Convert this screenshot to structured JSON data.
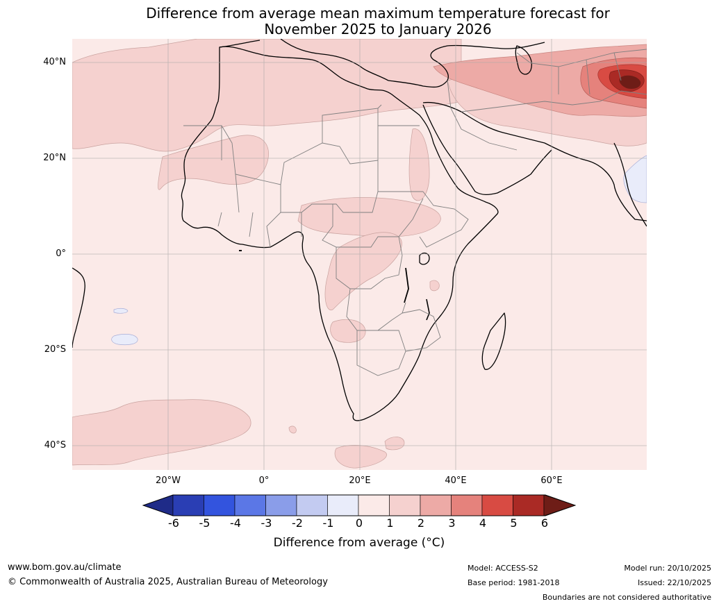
{
  "title": {
    "line1": "Difference from average mean maximum temperature forecast for",
    "line2": "November 2025 to January 2026"
  },
  "map": {
    "region": "Africa and surrounding oceans",
    "lat_labels": [
      "40°N",
      "20°N",
      "0°",
      "20°S",
      "40°S"
    ],
    "lon_labels": [
      "20°W",
      "0°",
      "20°E",
      "40°E",
      "60°E"
    ]
  },
  "colorbar": {
    "label": "Difference from average (°C)",
    "ticks": [
      "-6",
      "-5",
      "-4",
      "-3",
      "-2",
      "-1",
      "0",
      "1",
      "2",
      "3",
      "4",
      "5",
      "6"
    ],
    "colors": [
      "#1f2b88",
      "#2a3eb4",
      "#3354de",
      "#5b77e6",
      "#8a9de9",
      "#c3cbf1",
      "#e9ecfa",
      "#fbeae8",
      "#f5d1cf",
      "#edaaa6",
      "#e5827c",
      "#d84b43",
      "#aa2a25",
      "#6e1d17"
    ]
  },
  "footer": {
    "website": "www.bom.gov.au/climate",
    "copyright": "© Commonwealth of Australia 2025, Australian Bureau of Meteorology",
    "model": "Model: ACCESS-S2",
    "base_period": "Base period: 1981-2018",
    "model_run": "Model run: 20/10/2025",
    "issued": "Issued: 22/10/2025",
    "disclaimer": "Boundaries are not considered authoritative"
  }
}
